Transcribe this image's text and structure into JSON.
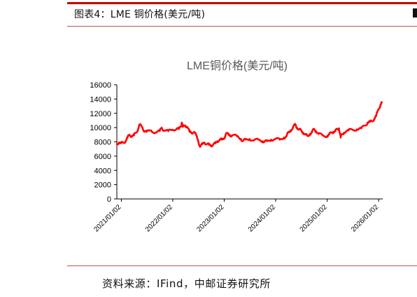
{
  "figure": {
    "title": "图表4：LME 铜价格(美元/吨)",
    "source": "资料来源：IFind，中邮证券研究所"
  },
  "colors": {
    "accent": "#c00000",
    "rule": "#c0504d",
    "series": "#ff0000",
    "axis": "#000000",
    "chart_title": "#595959",
    "tick_text": "#000000"
  },
  "chart_data": {
    "type": "line",
    "title": "LME铜价格(美元/吨)",
    "xlabel": "",
    "ylabel": "",
    "ylim": [
      0,
      16000
    ],
    "yticks": [
      0,
      2000,
      4000,
      6000,
      8000,
      10000,
      12000,
      14000,
      16000
    ],
    "ytick_labels": [
      "0",
      "2000",
      "4000",
      "6000",
      "8000",
      "10000",
      "12000",
      "14000",
      "16000"
    ],
    "xlim": [
      "2020-12-01",
      "2026-01-31"
    ],
    "xticks": [
      "2021-01-02",
      "2022-01-02",
      "2023-01-02",
      "2024-01-02",
      "2025-01-02",
      "2026-01-02"
    ],
    "xtick_labels": [
      "2021/01/02",
      "2022/01/02",
      "2023/01/02",
      "2024/01/02",
      "2025/01/02",
      "2026/01/02"
    ],
    "grid": false,
    "legend": "none",
    "series": [
      {
        "x": [
          "2020-12-01",
          "2020-12-15",
          "2021-01-01",
          "2021-01-15",
          "2021-02-01",
          "2021-02-15",
          "2021-03-01",
          "2021-03-15",
          "2021-04-01",
          "2021-04-15",
          "2021-05-01",
          "2021-05-12",
          "2021-06-01",
          "2021-06-15",
          "2021-07-01",
          "2021-08-01",
          "2021-09-01",
          "2021-10-01",
          "2021-10-15",
          "2021-11-01",
          "2021-12-01",
          "2022-01-01",
          "2022-02-01",
          "2022-02-15",
          "2022-03-01",
          "2022-03-07",
          "2022-03-15",
          "2022-04-01",
          "2022-04-15",
          "2022-05-01",
          "2022-05-15",
          "2022-06-01",
          "2022-06-15",
          "2022-07-01",
          "2022-07-15",
          "2022-08-01",
          "2022-08-15",
          "2022-09-01",
          "2022-09-15",
          "2022-10-01",
          "2022-10-15",
          "2022-11-01",
          "2022-11-15",
          "2022-12-01",
          "2022-12-15",
          "2023-01-01",
          "2023-01-15",
          "2023-02-01",
          "2023-02-15",
          "2023-03-01",
          "2023-04-01",
          "2023-05-01",
          "2023-05-15",
          "2023-06-01",
          "2023-07-01",
          "2023-08-01",
          "2023-09-01",
          "2023-10-01",
          "2023-10-15",
          "2023-11-01",
          "2023-12-01",
          "2024-01-01",
          "2024-02-01",
          "2024-03-01",
          "2024-03-20",
          "2024-04-01",
          "2024-04-15",
          "2024-05-01",
          "2024-05-20",
          "2024-06-01",
          "2024-06-15",
          "2024-07-01",
          "2024-07-15",
          "2024-08-01",
          "2024-08-15",
          "2024-09-01",
          "2024-09-15",
          "2024-10-01",
          "2024-10-15",
          "2024-11-01",
          "2024-12-01",
          "2025-01-01",
          "2025-01-15",
          "2025-02-01",
          "2025-02-15",
          "2025-03-01",
          "2025-03-15",
          "2025-03-26",
          "2025-04-08",
          "2025-04-15",
          "2025-05-01",
          "2025-06-01",
          "2025-07-01",
          "2025-08-01",
          "2025-09-01",
          "2025-10-01",
          "2025-10-15",
          "2025-11-01",
          "2025-11-15",
          "2025-12-01",
          "2025-12-15",
          "2026-01-02",
          "2026-01-15",
          "2026-01-25"
        ],
        "values": [
          7700,
          7900,
          7800,
          7900,
          8100,
          8600,
          9000,
          8800,
          8900,
          9300,
          9800,
          10400,
          10000,
          9500,
          9400,
          9600,
          9300,
          9500,
          10000,
          9600,
          9500,
          9700,
          9900,
          9800,
          10200,
          10700,
          10100,
          10300,
          10100,
          9400,
          9300,
          9400,
          9000,
          8200,
          7300,
          7700,
          7900,
          7700,
          7600,
          7500,
          7600,
          7800,
          8100,
          8300,
          8300,
          8500,
          9200,
          9000,
          8900,
          8900,
          8800,
          8400,
          8100,
          8300,
          8400,
          8200,
          8300,
          8100,
          8000,
          8100,
          8300,
          8400,
          8300,
          8600,
          8800,
          9300,
          9600,
          9800,
          10500,
          10000,
          9700,
          9600,
          9300,
          9000,
          8800,
          9100,
          9300,
          9800,
          9500,
          9100,
          8900,
          8800,
          9000,
          9300,
          9400,
          9500,
          9800,
          9900,
          8600,
          9100,
          9300,
          9600,
          9700,
          9750,
          9900,
          10300,
          10700,
          10800,
          10900,
          11200,
          11600,
          12600,
          13200,
          13500
        ]
      }
    ]
  }
}
